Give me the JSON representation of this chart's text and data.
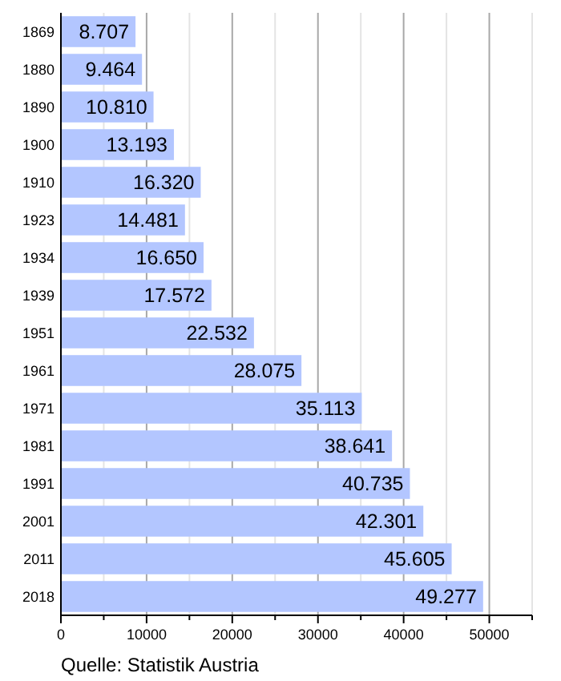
{
  "chart_data": {
    "type": "bar",
    "orientation": "horizontal",
    "categories": [
      "1869",
      "1880",
      "1890",
      "1900",
      "1910",
      "1923",
      "1934",
      "1939",
      "1951",
      "1961",
      "1971",
      "1981",
      "1991",
      "2001",
      "2011",
      "2018"
    ],
    "values": [
      8707,
      9464,
      10810,
      13193,
      16320,
      14481,
      16650,
      17572,
      22532,
      28075,
      35113,
      38641,
      40735,
      42301,
      45605,
      49277
    ],
    "value_labels": [
      "8.707",
      "9.464",
      "10.810",
      "13.193",
      "16.320",
      "14.481",
      "16.650",
      "17.572",
      "22.532",
      "28.075",
      "35.113",
      "38.641",
      "40.735",
      "42.301",
      "45.605",
      "49.277"
    ],
    "color": "#b3c6ff",
    "xlim": [
      0,
      55000
    ],
    "xticks": [
      0,
      {
        "value": 5000,
        "label": null
      },
      10000,
      {
        "value": 15000,
        "label": null
      },
      20000,
      {
        "value": 25000,
        "label": null
      },
      30000,
      {
        "value": 35000,
        "label": null
      },
      40000,
      {
        "value": 45000,
        "label": null
      },
      50000,
      {
        "value": 55000,
        "label": null
      }
    ],
    "grid": "x",
    "annotations": [
      "Quelle: Statistik Austria"
    ]
  }
}
